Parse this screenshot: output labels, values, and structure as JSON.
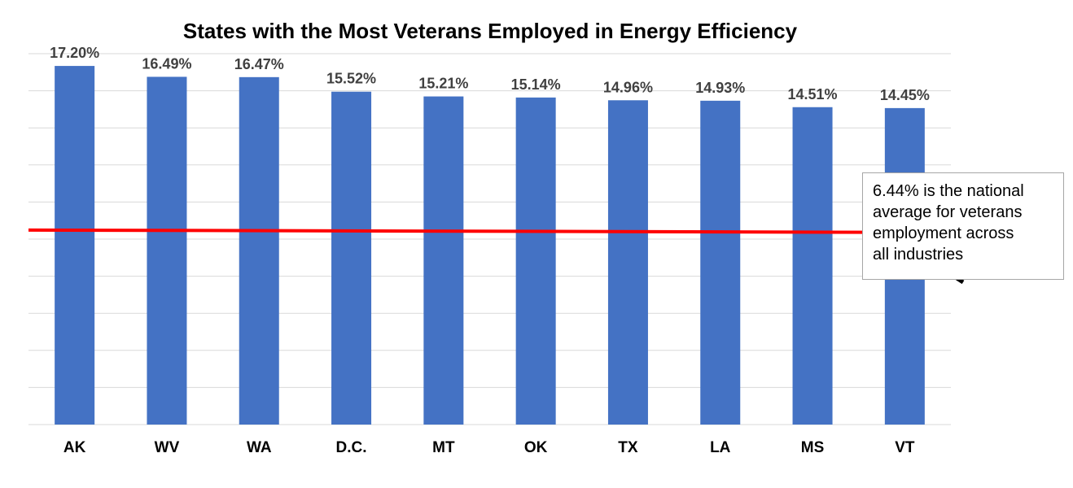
{
  "chart_data": {
    "type": "bar",
    "title": "States with the Most Veterans Employed in Energy Efficiency",
    "categories": [
      "AK",
      "WV",
      "WA",
      "D.C.",
      "MT",
      "OK",
      "TX",
      "LA",
      "MS",
      "VT"
    ],
    "values": [
      17.2,
      16.49,
      16.47,
      15.52,
      15.21,
      15.14,
      14.96,
      14.93,
      14.51,
      14.45
    ],
    "value_labels": [
      "17.20%",
      "16.49%",
      "16.47%",
      "15.52%",
      "15.21%",
      "15.14%",
      "14.96%",
      "14.93%",
      "14.51%",
      "14.45%"
    ],
    "xlabel": "",
    "ylabel": "",
    "ylim": [
      -6.2,
      18.0
    ],
    "grid": true,
    "colors": {
      "bar": "#4472c4",
      "reference_line": "#ff0000",
      "grid": "#d9d9d9",
      "label": "#404040"
    },
    "reference_line": {
      "value": 6.44
    },
    "annotation": {
      "lines": [
        "6.44% is the national",
        "average for veterans",
        "employment  across",
        "all industries"
      ],
      "arrow_color": "#000000"
    }
  }
}
